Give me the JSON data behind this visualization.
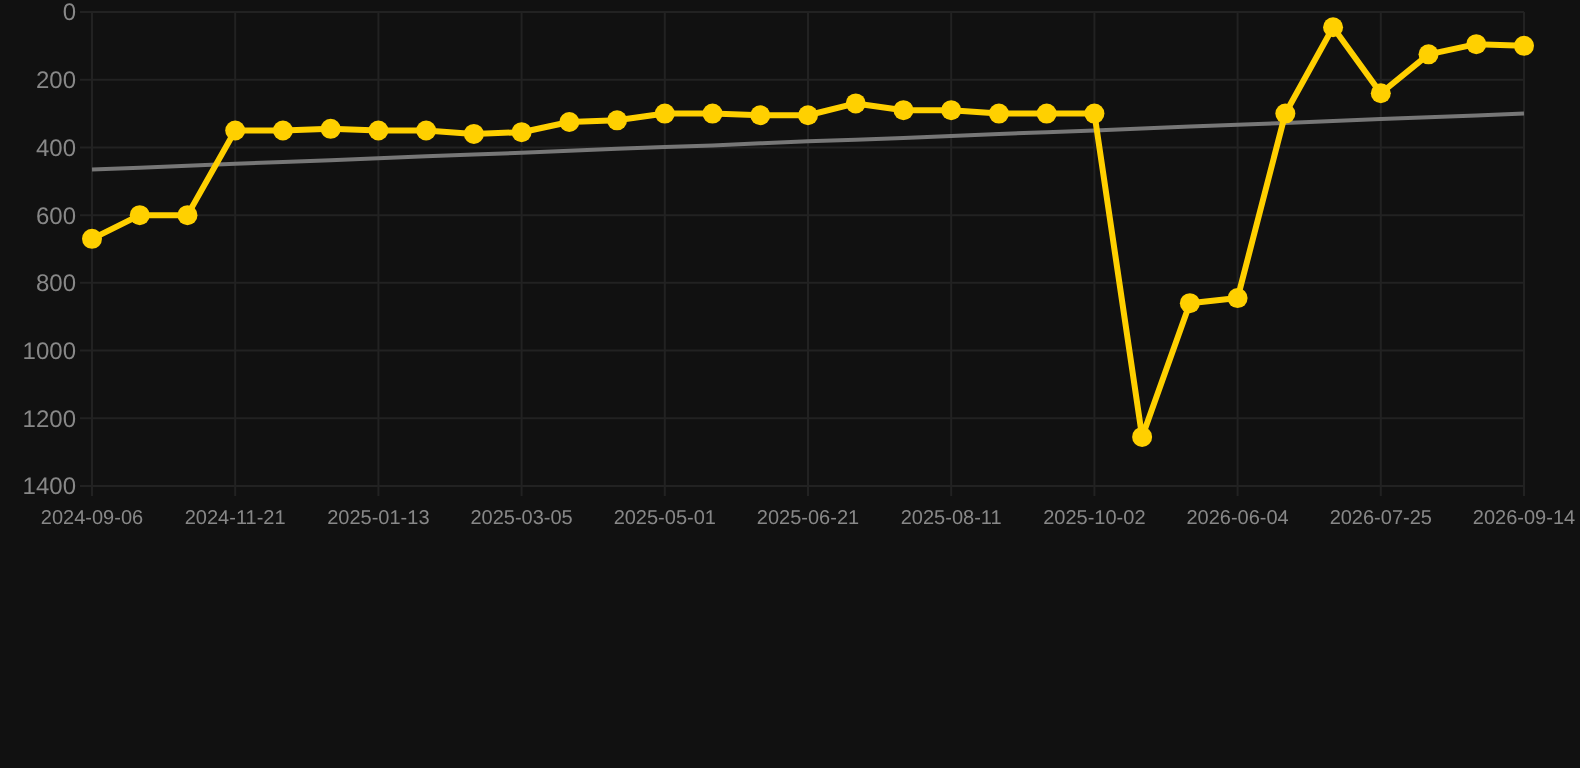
{
  "chart_data": {
    "type": "line",
    "categories": [
      "2024-09-06",
      null,
      null,
      "2024-11-21",
      null,
      null,
      "2025-01-13",
      null,
      null,
      "2025-03-05",
      null,
      null,
      "2025-05-01",
      null,
      null,
      "2025-06-21",
      null,
      null,
      "2025-08-11",
      null,
      null,
      "2025-10-02",
      null,
      null,
      "2026-06-04",
      null,
      null,
      "2026-07-25",
      null,
      null,
      "2026-09-14"
    ],
    "series": [
      {
        "color": "#ffd000",
        "marker": "circle",
        "values": [
          670,
          600,
          600,
          350,
          350,
          345,
          350,
          350,
          360,
          355,
          325,
          320,
          300,
          300,
          305,
          305,
          270,
          290,
          290,
          300,
          300,
          300,
          1255,
          860,
          845,
          300,
          45,
          240,
          125,
          95,
          100
        ]
      },
      {
        "color": "#777777",
        "marker": "none",
        "values": [
          465,
          460,
          454,
          448,
          443,
          438,
          432,
          426,
          421,
          416,
          410,
          404,
          399,
          394,
          388,
          382,
          377,
          372,
          366,
          360,
          355,
          350,
          344,
          338,
          333,
          328,
          322,
          316,
          311,
          306,
          300
        ]
      }
    ],
    "ylim": [
      1400,
      0
    ],
    "yticks": [
      0,
      200,
      400,
      600,
      800,
      1000,
      1200,
      1400
    ],
    "grid": true
  }
}
